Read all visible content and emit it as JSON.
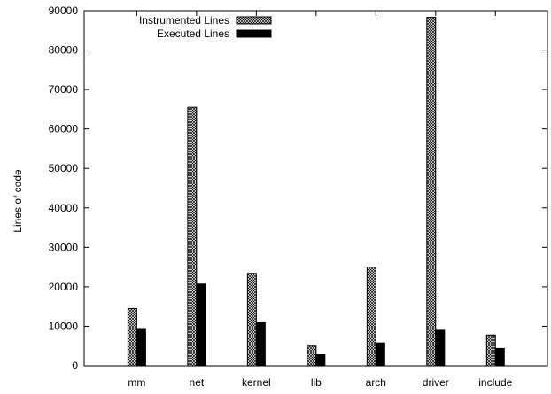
{
  "chart_data": {
    "type": "bar",
    "categories": [
      "mm",
      "net",
      "kernel",
      "lib",
      "arch",
      "driver",
      "include"
    ],
    "series": [
      {
        "name": "Instrumented Lines",
        "values": [
          14500,
          65500,
          23400,
          5000,
          25000,
          88300,
          7800
        ],
        "pattern": "crosshatch"
      },
      {
        "name": "Executed Lines",
        "values": [
          9200,
          20700,
          10900,
          2800,
          5800,
          9000,
          4400
        ],
        "pattern": "solid"
      }
    ],
    "ylabel": "Lines of code",
    "xlabel": "",
    "ylim": [
      0,
      90000
    ],
    "yticks": [
      0,
      10000,
      20000,
      30000,
      40000,
      50000,
      60000,
      70000,
      80000,
      90000
    ],
    "grid": false,
    "legend_position": "top-center",
    "colors": {
      "bar_fill": "#000000",
      "hatch_bg": "#ffffff",
      "axis": "#000000"
    }
  }
}
